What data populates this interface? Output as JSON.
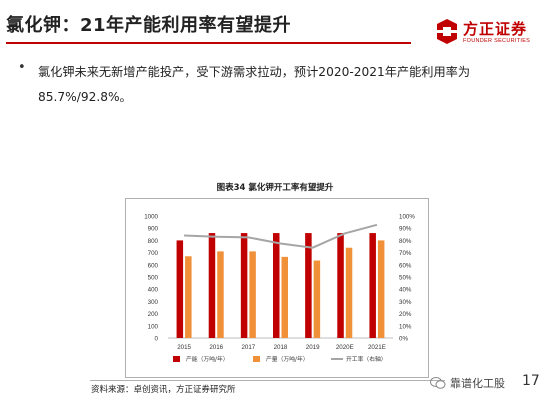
{
  "header": {
    "title": "氯化钾：21年产能利用率有望提升",
    "logo_cn": "方正证券",
    "logo_en": "FOUNDER SECURITIES"
  },
  "body": {
    "bullet": "•",
    "line1": "氯化钾未来无新增产能投产，受下游需求拉动，预计2020-2021年产能利用率为",
    "line2": "85.7%/92.8%。"
  },
  "chart_title": "图表34 氯化钾开工率有望提升",
  "chart_data": {
    "type": "bar",
    "categories": [
      "2015",
      "2016",
      "2017",
      "2018",
      "2019",
      "2020E",
      "2021E"
    ],
    "series": [
      {
        "name": "产能（万吨/年）",
        "kind": "bar",
        "axis": "left",
        "color": "#c00000",
        "values": [
          800,
          860,
          860,
          860,
          860,
          860,
          860
        ]
      },
      {
        "name": "产量（万吨/年）",
        "kind": "bar",
        "axis": "left",
        "color": "#f0913a",
        "values": [
          670,
          710,
          710,
          665,
          635,
          740,
          800
        ]
      },
      {
        "name": "开工率（右轴）",
        "kind": "line",
        "axis": "right",
        "color": "#a6a6a6",
        "values": [
          84,
          83,
          82.5,
          77.5,
          74,
          85.7,
          92.8
        ]
      }
    ],
    "ylim_left": [
      0,
      1000
    ],
    "ylim_right": [
      0,
      100
    ],
    "left_ticks": [
      "1000",
      "900",
      "800",
      "700",
      "600",
      "500",
      "400",
      "300",
      "200",
      "100",
      "0"
    ],
    "right_ticks": [
      "100%",
      "90%",
      "80%",
      "70%",
      "60%",
      "50%",
      "40%",
      "30%",
      "20%",
      "10%",
      "0%"
    ],
    "grid": false,
    "legend_position": "bottom"
  },
  "source": "资料来源：卓创资讯，方正证券研究所",
  "watermark": "靠谱化工股",
  "page_number": "17",
  "colors": {
    "accent": "#c00000",
    "orange": "#f0913a",
    "gray_line": "#a6a6a6"
  }
}
